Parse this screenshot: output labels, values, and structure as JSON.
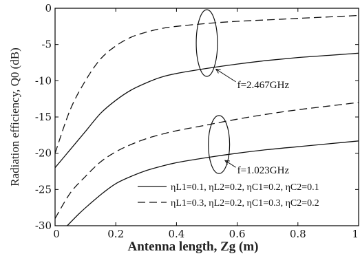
{
  "chart_data": {
    "type": "line",
    "xlabel": "Antenna length, Zg (m)",
    "ylabel": "Radiation efficiency, Q0 (dB)",
    "xlim": [
      0,
      1
    ],
    "ylim": [
      -30,
      0
    ],
    "xticks": [
      0,
      0.2,
      0.4,
      0.6,
      0.8,
      1
    ],
    "xtick_labels": [
      "0",
      "0.2",
      "0.4",
      "0.6",
      "0.8",
      "1"
    ],
    "yticks": [
      0,
      -5,
      -10,
      -15,
      -20,
      -25,
      -30
    ],
    "ytick_labels": [
      "0",
      "-5",
      "-10",
      "-15",
      "-20",
      "-25",
      "-30"
    ],
    "grid": false,
    "series": [
      {
        "style": "dashed",
        "x": [
          0,
          0.05,
          0.1,
          0.15,
          0.2,
          0.25,
          0.3,
          0.35,
          0.4,
          0.5,
          0.6,
          0.7,
          0.8,
          0.9,
          1.0
        ],
        "y": [
          -20.0,
          -14.0,
          -10.0,
          -7.0,
          -5.2,
          -4.0,
          -3.3,
          -2.8,
          -2.5,
          -2.1,
          -1.8,
          -1.6,
          -1.4,
          -1.2,
          -1.0
        ]
      },
      {
        "style": "solid",
        "x": [
          0,
          0.05,
          0.1,
          0.15,
          0.2,
          0.25,
          0.3,
          0.35,
          0.4,
          0.5,
          0.6,
          0.7,
          0.8,
          0.9,
          1.0
        ],
        "y": [
          -22.0,
          -19.5,
          -17.0,
          -14.5,
          -12.7,
          -11.3,
          -10.3,
          -9.5,
          -9.0,
          -8.3,
          -7.7,
          -7.2,
          -6.8,
          -6.5,
          -6.2
        ]
      },
      {
        "style": "dashed",
        "x": [
          0,
          0.05,
          0.1,
          0.15,
          0.2,
          0.25,
          0.3,
          0.35,
          0.4,
          0.5,
          0.6,
          0.7,
          0.8,
          0.9,
          1.0
        ],
        "y": [
          -29.0,
          -25.5,
          -23.2,
          -21.2,
          -19.8,
          -18.8,
          -18.0,
          -17.4,
          -16.9,
          -16.1,
          -15.3,
          -14.6,
          -14.0,
          -13.5,
          -13.0
        ]
      },
      {
        "style": "solid",
        "x": [
          0.04,
          0.08,
          0.12,
          0.16,
          0.2,
          0.25,
          0.3,
          0.35,
          0.4,
          0.5,
          0.6,
          0.7,
          0.8,
          0.9,
          1.0
        ],
        "y": [
          -30.0,
          -28.3,
          -26.8,
          -25.4,
          -24.2,
          -23.2,
          -22.4,
          -21.8,
          -21.3,
          -20.6,
          -20.0,
          -19.5,
          -19.1,
          -18.7,
          -18.3
        ]
      }
    ],
    "annotations": [
      {
        "text": "f=2.467GHz",
        "ellipse_center": [
          0.5,
          -4.8
        ],
        "ellipse_rx": 0.035,
        "ellipse_ry": 4.6,
        "arrow_to": [
          0.53,
          -8.4
        ],
        "text_at": [
          0.6,
          -11.0
        ]
      },
      {
        "text": "f=1.023GHz",
        "ellipse_center": [
          0.54,
          -18.8
        ],
        "ellipse_rx": 0.035,
        "ellipse_ry": 4.0,
        "arrow_to": [
          0.56,
          -21.0
        ],
        "text_at": [
          0.6,
          -22.8
        ]
      }
    ],
    "legend": {
      "placement": "bottom-right",
      "entries": [
        {
          "style": "solid",
          "text": "ηL1=0.1, ηL2=0.2, ηC1=0.2, ηC2=0.1"
        },
        {
          "style": "dashed",
          "text": "ηL1=0.3, ηL2=0.2, ηC1=0.3, ηC2=0.2"
        }
      ]
    }
  }
}
